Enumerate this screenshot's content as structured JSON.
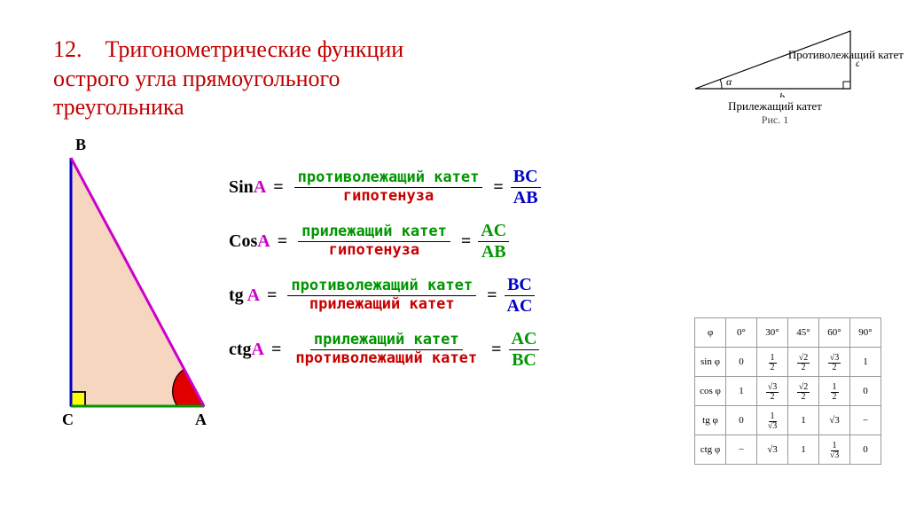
{
  "title": "12.    Тригонометрические функции острого угла прямоугольного треугольника",
  "smallTri": {
    "opposite": "Противолежащий катет",
    "adjacent": "Прилежащий катет",
    "figLabel": "Рис. 1",
    "a": "a",
    "b": "b",
    "alpha": "α"
  },
  "bigTri": {
    "B": "B",
    "C": "C",
    "A": "A",
    "fill": "#F7D6BF",
    "hyp": "#cc00cc",
    "legBC": "#0000c8",
    "legCA": "#009600",
    "angleFill": "#e00000",
    "rightFill": "#ffff00"
  },
  "words": {
    "opp": "противолежащий катет",
    "adj": "прилежащий катет",
    "hyp": "гипотенуза"
  },
  "labels": {
    "BC": "BC",
    "AB": "AB",
    "AC": "AC"
  },
  "fns": {
    "sin": "Sin",
    "cos": "Cos",
    "tg": "tg ",
    "ctg": "ctg",
    "A": "A",
    "eq": "="
  },
  "table": {
    "headers": [
      "φ",
      "0°",
      "30°",
      "45°",
      "60°",
      "90°"
    ],
    "rows": [
      {
        "fn": "sin φ",
        "vals": [
          "0",
          "1/2",
          "√2/2",
          "√3/2",
          "1"
        ]
      },
      {
        "fn": "cos φ",
        "vals": [
          "1",
          "√3/2",
          "√2/2",
          "1/2",
          "0"
        ]
      },
      {
        "fn": "tg φ",
        "vals": [
          "0",
          "1/√3",
          "1",
          "√3",
          "−"
        ]
      },
      {
        "fn": "ctg φ",
        "vals": [
          "−",
          "√3",
          "1",
          "1/√3",
          "0"
        ]
      }
    ]
  }
}
